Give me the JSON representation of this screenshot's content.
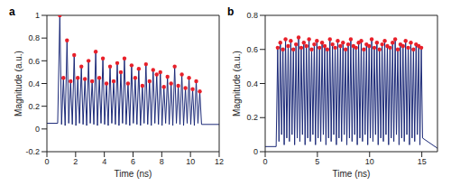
{
  "chart_data": [
    {
      "type": "line",
      "title": "a",
      "x_label": "Time (ns)",
      "y_label": "Magnitude (a.u.)",
      "xlim": [
        0,
        12
      ],
      "xticks": [
        0,
        2,
        4,
        6,
        8,
        10,
        12
      ],
      "ylim": [
        -0.2,
        1
      ],
      "yticks": [
        -0.2,
        0,
        0.2,
        0.4,
        0.6,
        0.8,
        1
      ],
      "series": [
        {
          "type": "line",
          "color": "#1c2a78",
          "x": [
            0,
            0.75,
            0.9,
            1.02,
            1.15,
            1.27,
            1.4,
            1.52,
            1.65,
            1.77,
            1.9,
            2.02,
            2.15,
            2.27,
            2.4,
            2.52,
            2.65,
            2.77,
            2.9,
            3.02,
            3.15,
            3.27,
            3.4,
            3.52,
            3.65,
            3.77,
            3.9,
            4.02,
            4.15,
            4.27,
            4.4,
            4.52,
            4.65,
            4.77,
            4.9,
            5.02,
            5.15,
            5.27,
            5.4,
            5.52,
            5.65,
            5.77,
            5.9,
            6.02,
            6.15,
            6.27,
            6.4,
            6.52,
            6.65,
            6.77,
            6.9,
            7.02,
            7.15,
            7.27,
            7.4,
            7.52,
            7.65,
            7.77,
            7.9,
            8.02,
            8.15,
            8.27,
            8.4,
            8.52,
            8.65,
            8.77,
            8.9,
            9.02,
            9.15,
            9.27,
            9.4,
            9.52,
            9.65,
            9.77,
            9.9,
            10.02,
            10.15,
            10.27,
            10.4,
            10.52,
            10.65,
            10.77,
            12
          ],
          "values": [
            0.05,
            0.05,
            1.0,
            0.04,
            0.45,
            0.03,
            0.78,
            0.05,
            0.42,
            0.04,
            0.65,
            0.03,
            0.45,
            0.05,
            0.55,
            0.04,
            0.44,
            0.03,
            0.6,
            0.05,
            0.42,
            0.04,
            0.68,
            0.03,
            0.45,
            0.05,
            0.62,
            0.04,
            0.4,
            0.03,
            0.55,
            0.05,
            0.42,
            0.04,
            0.58,
            0.03,
            0.5,
            0.05,
            0.62,
            0.04,
            0.4,
            0.03,
            0.56,
            0.05,
            0.45,
            0.04,
            0.53,
            0.03,
            0.38,
            0.05,
            0.57,
            0.04,
            0.42,
            0.03,
            0.52,
            0.05,
            0.48,
            0.04,
            0.5,
            0.03,
            0.37,
            0.05,
            0.46,
            0.04,
            0.4,
            0.03,
            0.55,
            0.05,
            0.38,
            0.04,
            0.48,
            0.03,
            0.36,
            0.05,
            0.45,
            0.04,
            0.35,
            0.03,
            0.42,
            0.05,
            0.33,
            0.04,
            0.04
          ]
        },
        {
          "type": "scatter",
          "color": "#e8202a",
          "marker": "circle",
          "x": [
            0.9,
            1.15,
            1.4,
            1.65,
            1.9,
            2.15,
            2.4,
            2.65,
            2.9,
            3.15,
            3.4,
            3.65,
            3.9,
            4.15,
            4.4,
            4.65,
            4.9,
            5.15,
            5.4,
            5.65,
            5.9,
            6.15,
            6.4,
            6.65,
            6.9,
            7.15,
            7.4,
            7.65,
            7.9,
            8.15,
            8.4,
            8.65,
            8.9,
            9.15,
            9.4,
            9.65,
            9.9,
            10.15,
            10.4,
            10.65
          ],
          "values": [
            1.0,
            0.45,
            0.78,
            0.42,
            0.65,
            0.45,
            0.55,
            0.44,
            0.6,
            0.42,
            0.68,
            0.45,
            0.62,
            0.4,
            0.55,
            0.42,
            0.58,
            0.5,
            0.62,
            0.4,
            0.56,
            0.45,
            0.53,
            0.38,
            0.57,
            0.42,
            0.52,
            0.48,
            0.5,
            0.37,
            0.46,
            0.4,
            0.55,
            0.38,
            0.48,
            0.36,
            0.45,
            0.35,
            0.42,
            0.33
          ]
        }
      ]
    },
    {
      "type": "line",
      "title": "b",
      "x_label": "Time (ns)",
      "y_label": "Magnitude (a.u.)",
      "xlim": [
        0,
        16.5
      ],
      "xticks": [
        0,
        5,
        10,
        15
      ],
      "ylim": [
        0,
        0.8
      ],
      "yticks": [
        0,
        0.2,
        0.4,
        0.6,
        0.8
      ],
      "series": [
        {
          "type": "line",
          "color": "#1c2a78",
          "x": [
            0,
            1.05,
            1.2,
            1.32,
            1.45,
            1.57,
            1.7,
            1.82,
            1.95,
            2.07,
            2.2,
            2.32,
            2.45,
            2.57,
            2.7,
            2.82,
            2.95,
            3.07,
            3.2,
            3.32,
            3.45,
            3.57,
            3.7,
            3.82,
            3.95,
            4.07,
            4.2,
            4.32,
            4.45,
            4.57,
            4.7,
            4.82,
            4.95,
            5.07,
            5.2,
            5.32,
            5.45,
            5.57,
            5.7,
            5.82,
            5.95,
            6.07,
            6.2,
            6.32,
            6.45,
            6.57,
            6.7,
            6.82,
            6.95,
            7.07,
            7.2,
            7.32,
            7.45,
            7.57,
            7.7,
            7.82,
            7.95,
            8.07,
            8.2,
            8.32,
            8.45,
            8.57,
            8.7,
            8.82,
            8.95,
            9.07,
            9.2,
            9.32,
            9.45,
            9.57,
            9.7,
            9.82,
            9.95,
            10.07,
            10.2,
            10.32,
            10.45,
            10.57,
            10.7,
            10.82,
            10.95,
            11.07,
            11.2,
            11.32,
            11.45,
            11.57,
            11.7,
            11.82,
            11.95,
            12.07,
            12.2,
            12.32,
            12.45,
            12.57,
            12.7,
            12.82,
            12.95,
            13.07,
            13.2,
            13.32,
            13.45,
            13.57,
            13.7,
            13.82,
            13.95,
            14.07,
            14.2,
            14.32,
            14.45,
            14.57,
            14.7,
            14.82,
            14.95,
            15.07,
            16.5
          ],
          "values": [
            0.03,
            0.03,
            0.61,
            0.06,
            0.64,
            0.1,
            0.6,
            0.04,
            0.66,
            0.08,
            0.62,
            0.06,
            0.65,
            0.1,
            0.6,
            0.04,
            0.63,
            0.08,
            0.67,
            0.06,
            0.61,
            0.1,
            0.64,
            0.04,
            0.62,
            0.08,
            0.66,
            0.06,
            0.6,
            0.1,
            0.63,
            0.04,
            0.65,
            0.08,
            0.61,
            0.06,
            0.64,
            0.1,
            0.62,
            0.04,
            0.6,
            0.08,
            0.66,
            0.06,
            0.63,
            0.1,
            0.61,
            0.04,
            0.65,
            0.08,
            0.62,
            0.06,
            0.64,
            0.1,
            0.6,
            0.04,
            0.63,
            0.08,
            0.66,
            0.06,
            0.62,
            0.1,
            0.61,
            0.04,
            0.64,
            0.08,
            0.65,
            0.06,
            0.6,
            0.1,
            0.63,
            0.04,
            0.62,
            0.08,
            0.66,
            0.06,
            0.61,
            0.1,
            0.64,
            0.04,
            0.6,
            0.08,
            0.63,
            0.06,
            0.65,
            0.1,
            0.62,
            0.04,
            0.61,
            0.08,
            0.64,
            0.06,
            0.66,
            0.1,
            0.6,
            0.04,
            0.63,
            0.08,
            0.62,
            0.06,
            0.65,
            0.1,
            0.61,
            0.04,
            0.64,
            0.08,
            0.6,
            0.06,
            0.63,
            0.1,
            0.62,
            0.04,
            0.61,
            0.08,
            0.02
          ]
        },
        {
          "type": "scatter",
          "color": "#e8202a",
          "marker": "circle",
          "x": [
            1.2,
            1.45,
            1.7,
            1.95,
            2.2,
            2.45,
            2.7,
            2.95,
            3.2,
            3.45,
            3.7,
            3.95,
            4.2,
            4.45,
            4.7,
            4.95,
            5.2,
            5.45,
            5.7,
            5.95,
            6.2,
            6.45,
            6.7,
            6.95,
            7.2,
            7.45,
            7.7,
            7.95,
            8.2,
            8.45,
            8.7,
            8.95,
            9.2,
            9.45,
            9.7,
            9.95,
            10.2,
            10.45,
            10.7,
            10.95,
            11.2,
            11.45,
            11.7,
            11.95,
            12.2,
            12.45,
            12.7,
            12.95,
            13.2,
            13.45,
            13.7,
            13.95,
            14.2,
            14.45,
            14.7,
            14.95
          ],
          "values": [
            0.61,
            0.64,
            0.6,
            0.66,
            0.62,
            0.65,
            0.6,
            0.63,
            0.67,
            0.61,
            0.64,
            0.62,
            0.66,
            0.6,
            0.63,
            0.65,
            0.61,
            0.64,
            0.62,
            0.6,
            0.66,
            0.63,
            0.61,
            0.65,
            0.62,
            0.64,
            0.6,
            0.63,
            0.66,
            0.62,
            0.61,
            0.64,
            0.65,
            0.6,
            0.63,
            0.62,
            0.66,
            0.61,
            0.64,
            0.6,
            0.63,
            0.65,
            0.62,
            0.61,
            0.64,
            0.66,
            0.6,
            0.63,
            0.62,
            0.65,
            0.61,
            0.64,
            0.6,
            0.63,
            0.62,
            0.61
          ]
        }
      ]
    }
  ]
}
